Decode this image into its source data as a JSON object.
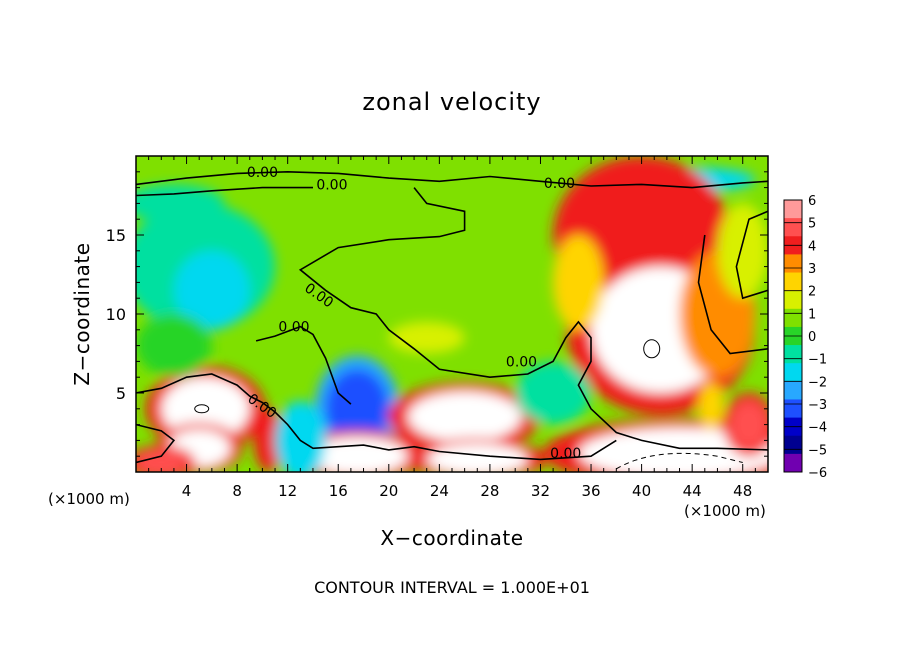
{
  "chart_data": {
    "type": "heatmap",
    "title": "zonal velocity",
    "xlabel": "X−coordinate",
    "ylabel": "Z−coordinate",
    "x_unit_label": "(×1000 m)",
    "x_ticks": [
      4,
      8,
      12,
      16,
      20,
      24,
      28,
      32,
      36,
      40,
      44,
      48
    ],
    "y_ticks": [
      5,
      10,
      15
    ],
    "xlim": [
      0,
      50
    ],
    "ylim": [
      0,
      20
    ],
    "colorbar": {
      "levels": [
        6,
        5,
        4,
        3,
        2,
        1,
        0,
        -1,
        -2,
        -3,
        -4,
        -5,
        -6
      ],
      "labels": [
        "6",
        "5",
        "4",
        "3",
        "2",
        "1",
        "0",
        "−1",
        "−2",
        "−3",
        "−4",
        "−5",
        "−6"
      ],
      "colors": [
        "#ff9a9a",
        "#ff5050",
        "#f01e1e",
        "#ff8c00",
        "#ffd400",
        "#d8f000",
        "#7fe000",
        "#28d428",
        "#00e0a0",
        "#00d8f0",
        "#28a8ff",
        "#1e50ff",
        "#0000c8",
        "#000090",
        "#7000b0"
      ]
    },
    "contour_interval_text": "CONTOUR INTERVAL = 1.000E+01",
    "contour_labels": [
      {
        "text": "0.00",
        "x": 10,
        "y": 19.0
      },
      {
        "text": "0.00",
        "x": 15.5,
        "y": 18.2
      },
      {
        "text": "0.00",
        "x": 33.5,
        "y": 18.3
      },
      {
        "text": "0.00",
        "x": 14.5,
        "y": 11.2
      },
      {
        "text": "0.00",
        "x": 12.5,
        "y": 9.2
      },
      {
        "text": "0.00",
        "x": 10,
        "y": 4.2
      },
      {
        "text": "0.00",
        "x": 30.5,
        "y": 7.0
      },
      {
        "text": "0.00",
        "x": 34,
        "y": 1.2
      }
    ],
    "blobs": [
      {
        "x": 5,
        "y": 13,
        "rx": 6,
        "ry": 4,
        "v": -2
      },
      {
        "x": 6,
        "y": 11.5,
        "rx": 3,
        "ry": 2.5,
        "v": -2.5
      },
      {
        "x": 3,
        "y": 17,
        "rx": 4,
        "ry": 1.2,
        "v": -1.5
      },
      {
        "x": 44,
        "y": 18.5,
        "rx": 5,
        "ry": 0.8,
        "v": -3
      },
      {
        "x": 40,
        "y": 15,
        "rx": 7,
        "ry": 5,
        "v": 4
      },
      {
        "x": 41.5,
        "y": 9,
        "rx": 5.5,
        "ry": 4,
        "v": 6
      },
      {
        "x": 35,
        "y": 12,
        "rx": 2,
        "ry": 3,
        "v": 2
      },
      {
        "x": 46,
        "y": 10,
        "rx": 3,
        "ry": 4,
        "v": 3
      },
      {
        "x": 48,
        "y": 14,
        "rx": 2,
        "ry": 3,
        "v": 1
      },
      {
        "x": 5.5,
        "y": 4,
        "rx": 3.5,
        "ry": 2,
        "v": 6
      },
      {
        "x": 5,
        "y": 1.5,
        "rx": 2.5,
        "ry": 1.2,
        "v": 6
      },
      {
        "x": 17.5,
        "y": 4,
        "rx": 2.5,
        "ry": 2.5,
        "v": -5
      },
      {
        "x": 17.5,
        "y": 1,
        "rx": 4,
        "ry": 1.2,
        "v": 6
      },
      {
        "x": 26,
        "y": 3.5,
        "rx": 4.5,
        "ry": 1.6,
        "v": 6
      },
      {
        "x": 27,
        "y": 0.8,
        "rx": 4,
        "ry": 1,
        "v": 6
      },
      {
        "x": 43,
        "y": 1.2,
        "rx": 8,
        "ry": 1.6,
        "v": 6
      },
      {
        "x": 10.5,
        "y": 2,
        "rx": 1.2,
        "ry": 2,
        "v": 4
      },
      {
        "x": 13,
        "y": 2,
        "rx": 2,
        "ry": 2.5,
        "v": -2.5
      },
      {
        "x": 2,
        "y": 0.6,
        "rx": 2,
        "ry": 0.8,
        "v": 5
      },
      {
        "x": 48.5,
        "y": 3,
        "rx": 1.5,
        "ry": 1.5,
        "v": 5
      },
      {
        "x": 45.5,
        "y": 4.2,
        "rx": 1,
        "ry": 1.5,
        "v": 2
      },
      {
        "x": 33,
        "y": 5,
        "rx": 3,
        "ry": 2,
        "v": -1.5
      },
      {
        "x": 3,
        "y": 8,
        "rx": 3,
        "ry": 2,
        "v": -1
      },
      {
        "x": 23,
        "y": 8.5,
        "rx": 3,
        "ry": 1,
        "v": 1.5
      }
    ]
  }
}
